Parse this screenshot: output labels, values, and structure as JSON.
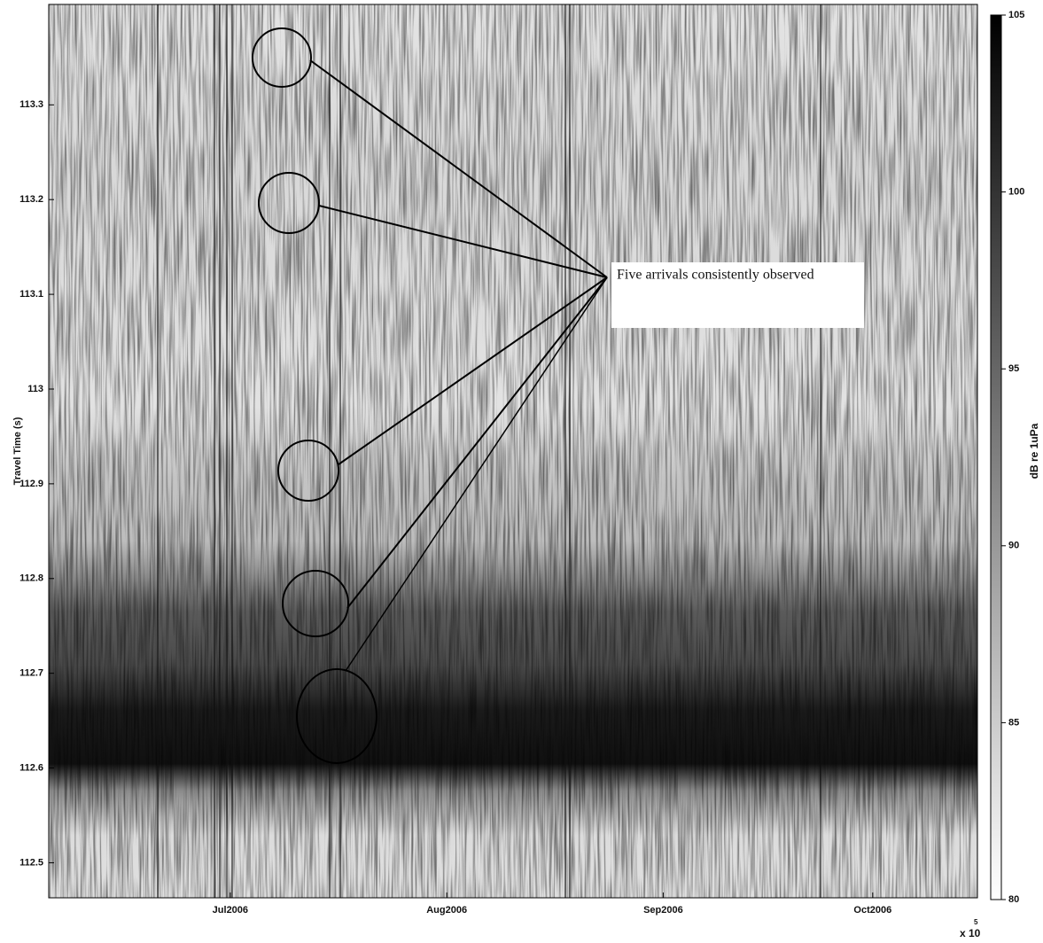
{
  "chart_data": {
    "type": "heatmap",
    "y_label": "Travel Time (s)",
    "colorbar_label": "dB re 1uPa",
    "annotation": "Five arrivals consistently observed",
    "x_multiplier": "x 10",
    "x_exponent": "5",
    "xlim": [
      732833,
      732966
    ],
    "xticks": [
      {
        "value": 732859,
        "label": "Jul2006"
      },
      {
        "value": 732890,
        "label": "Aug2006"
      },
      {
        "value": 732921,
        "label": "Sep2006"
      },
      {
        "value": 732951,
        "label": "Oct2006"
      }
    ],
    "ylim": [
      112.463,
      113.406
    ],
    "yticks": [
      112.5,
      112.6,
      112.7,
      112.8,
      112.9,
      113,
      113.1,
      113.2,
      113.3
    ],
    "clim": [
      80,
      105
    ],
    "cticks": [
      80,
      85,
      90,
      95,
      100,
      105
    ],
    "colormap": [
      "#ffffff",
      "#000000"
    ]
  }
}
